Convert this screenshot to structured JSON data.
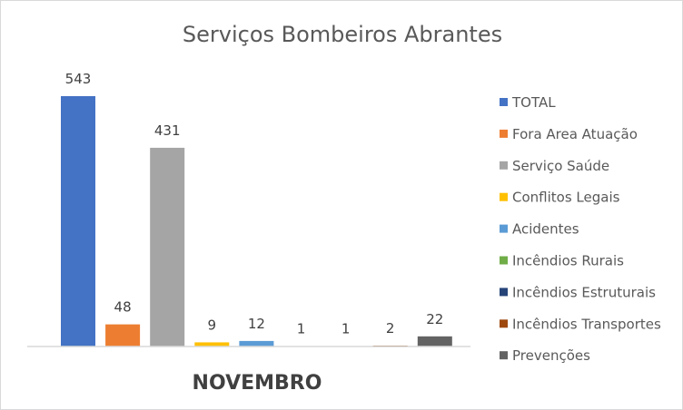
{
  "chart_data": {
    "type": "bar",
    "title": "Serviços Bombeiros Abrantes",
    "categories": [
      "NOVEMBRO"
    ],
    "ylim": [
      0,
      600
    ],
    "grid": false,
    "legend_position": "right",
    "series": [
      {
        "name": "TOTAL",
        "values": [
          543
        ],
        "color": "#4472c4"
      },
      {
        "name": "Fora Area Atuação",
        "values": [
          48
        ],
        "color": "#ed7d31"
      },
      {
        "name": "Serviço Saúde",
        "values": [
          431
        ],
        "color": "#a5a5a5"
      },
      {
        "name": "Conflitos Legais",
        "values": [
          9
        ],
        "color": "#ffc000"
      },
      {
        "name": "Acidentes",
        "values": [
          12
        ],
        "color": "#5b9bd5"
      },
      {
        "name": "Incêndios Rurais",
        "values": [
          1
        ],
        "color": "#70ad47"
      },
      {
        "name": "Incêndios Estruturais",
        "values": [
          1
        ],
        "color": "#264478"
      },
      {
        "name": "Incêndios Transportes",
        "values": [
          2
        ],
        "color": "#9e480e"
      },
      {
        "name": "Prevenções",
        "values": [
          22
        ],
        "color": "#636363"
      }
    ]
  }
}
